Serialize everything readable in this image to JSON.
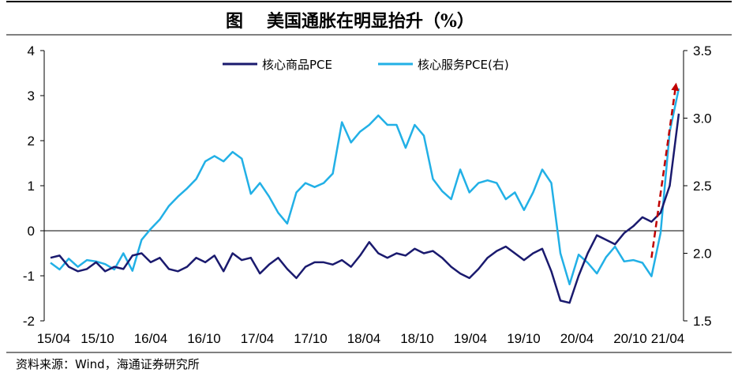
{
  "figure_label": "图",
  "title": "美国通胀在明显抬升（%）",
  "source": "资料来源：Wind，海通证券研究所",
  "colors": {
    "goods": "#1a1a6e",
    "services": "#22b0e6",
    "arrow": "#c00000",
    "axis": "#000000"
  },
  "chart_data": {
    "type": "line",
    "x_start": "2015-04",
    "x_tick_labels": [
      "15/04",
      "15/10",
      "16/04",
      "16/10",
      "17/04",
      "17/10",
      "18/04",
      "18/10",
      "19/04",
      "19/10",
      "20/04",
      "20/10",
      "21/04"
    ],
    "left_axis": {
      "ylim": [
        -2,
        4
      ],
      "ticks": [
        "4",
        "3",
        "2",
        "1",
        "0",
        "-1",
        "-2"
      ]
    },
    "right_axis": {
      "ylim": [
        1.5,
        3.5
      ],
      "ticks": [
        "3.5",
        "3.0",
        "2.5",
        "2.0",
        "1.5"
      ]
    },
    "series": [
      {
        "name": "核心商品PCE",
        "axis": "left",
        "color": "#1a1a6e",
        "values": [
          -0.6,
          -0.55,
          -0.8,
          -0.9,
          -0.85,
          -0.7,
          -0.9,
          -0.8,
          -0.85,
          -0.55,
          -0.5,
          -0.7,
          -0.6,
          -0.85,
          -0.9,
          -0.8,
          -0.6,
          -0.7,
          -0.55,
          -0.9,
          -0.5,
          -0.65,
          -0.6,
          -0.95,
          -0.75,
          -0.6,
          -0.85,
          -1.05,
          -0.8,
          -0.7,
          -0.7,
          -0.75,
          -0.65,
          -0.8,
          -0.55,
          -0.25,
          -0.5,
          -0.6,
          -0.5,
          -0.55,
          -0.4,
          -0.5,
          -0.45,
          -0.6,
          -0.8,
          -0.95,
          -1.05,
          -0.85,
          -0.6,
          -0.45,
          -0.35,
          -0.5,
          -0.65,
          -0.5,
          -0.4,
          -0.9,
          -1.55,
          -1.6,
          -1.0,
          -0.5,
          -0.1,
          -0.2,
          -0.3,
          -0.05,
          0.1,
          0.3,
          0.2,
          0.4,
          1.0,
          2.6
        ]
      },
      {
        "name": "核心服务PCE(右)",
        "axis": "right",
        "color": "#22b0e6",
        "values": [
          1.93,
          1.88,
          1.96,
          1.9,
          1.95,
          1.94,
          1.92,
          1.88,
          2.0,
          1.87,
          2.1,
          2.18,
          2.25,
          2.35,
          2.42,
          2.48,
          2.55,
          2.68,
          2.72,
          2.68,
          2.75,
          2.7,
          2.44,
          2.52,
          2.42,
          2.3,
          2.22,
          2.45,
          2.52,
          2.49,
          2.52,
          2.59,
          2.97,
          2.82,
          2.9,
          2.95,
          3.02,
          2.95,
          2.95,
          2.78,
          2.95,
          2.87,
          2.55,
          2.46,
          2.4,
          2.62,
          2.45,
          2.52,
          2.54,
          2.52,
          2.4,
          2.45,
          2.32,
          2.45,
          2.62,
          2.52,
          2.0,
          1.77,
          1.99,
          1.93,
          1.85,
          1.97,
          2.05,
          1.94,
          1.95,
          1.93,
          1.83,
          2.15,
          2.9,
          3.22
        ]
      }
    ],
    "annotation": {
      "type": "arrow",
      "from_index": 66,
      "to_index": 69,
      "from_y": -0.6,
      "to_y": 3.2,
      "axis": "left"
    },
    "legend": {
      "placement": "top-center",
      "entries": [
        "核心商品PCE",
        "核心服务PCE(右)"
      ]
    }
  }
}
